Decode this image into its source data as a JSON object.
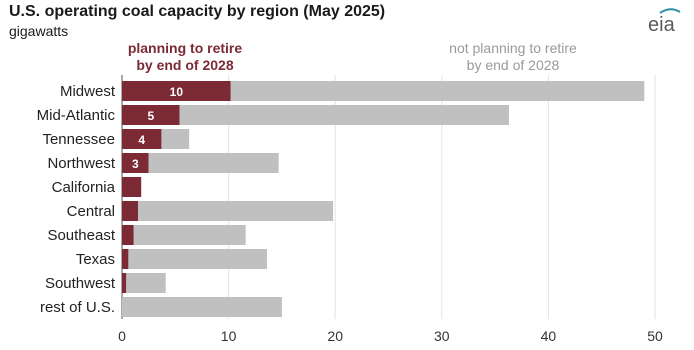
{
  "title": "U.S. operating coal capacity by region (May 2025)",
  "subtitle": "gigawatts",
  "logo_text": "eia",
  "colors": {
    "retire": "#7b2a36",
    "keep": "#c0c0c0",
    "logo": "#5a5a5a",
    "logo_accent": "#2f8ea8"
  },
  "legend": {
    "retire_line1": "planning to retire",
    "retire_line2": "by end of 2028",
    "keep_line1": "not planning to retire",
    "keep_line2": "by end of 2028"
  },
  "chart_data": {
    "type": "bar",
    "orientation": "horizontal",
    "stacked": true,
    "title": "U.S. operating coal capacity by region (May 2025)",
    "subtitle": "gigawatts",
    "categories": [
      "Midwest",
      "Mid-Atlantic",
      "Tennessee",
      "Northwest",
      "California",
      "Central",
      "Southeast",
      "Texas",
      "Southwest",
      "rest of U.S."
    ],
    "series": [
      {
        "name": "planning to retire by end of 2028",
        "values": [
          10.2,
          5.4,
          3.7,
          2.5,
          1.8,
          1.5,
          1.1,
          0.6,
          0.4,
          0
        ],
        "data_labels": [
          "10",
          "5",
          "4",
          "3",
          "",
          "",
          "",
          "",
          "",
          ""
        ]
      },
      {
        "name": "not planning to retire by end of 2028",
        "values": [
          38.8,
          30.9,
          2.6,
          12.2,
          0,
          18.3,
          10.5,
          13.0,
          3.7,
          15.0
        ]
      }
    ],
    "xlim": [
      0,
      50
    ],
    "xticks": [
      0,
      10,
      20,
      30,
      40,
      50
    ],
    "grid": true,
    "legend_placement": "top"
  }
}
